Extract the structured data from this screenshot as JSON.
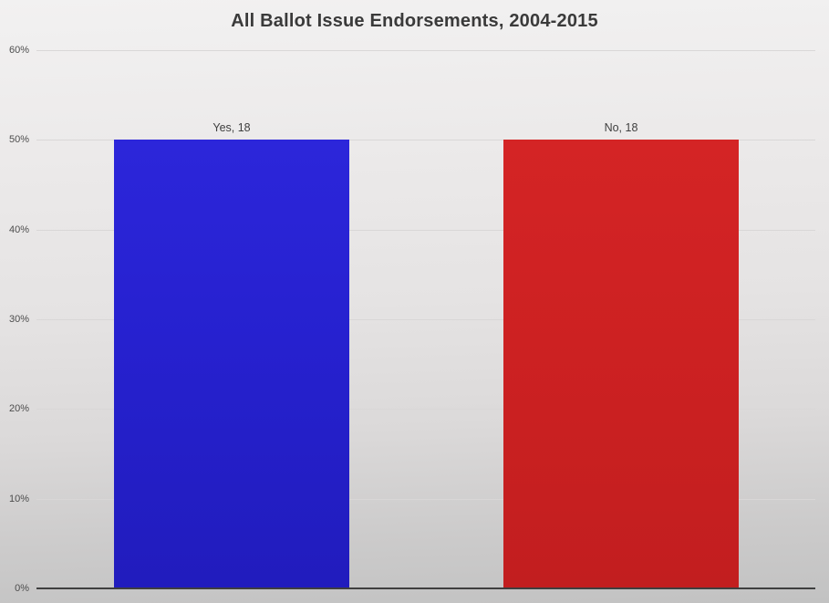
{
  "chart_data": {
    "type": "bar",
    "title": "All Ballot Issue Endorsements, 2004-2015",
    "categories": [
      "Yes",
      "No"
    ],
    "values": [
      50,
      50
    ],
    "counts": [
      18,
      18
    ],
    "data_labels": [
      "Yes, 18",
      "No, 18"
    ],
    "bar_colors": [
      "#2621cf",
      "#cd2122"
    ],
    "bar_gradient_tops": [
      "#2c26da",
      "#d42425"
    ],
    "bar_gradient_bottoms": [
      "#211cbd",
      "#c21e1f"
    ],
    "xlabel": "",
    "ylabel": "",
    "ylim": [
      0,
      60
    ],
    "ytick_step": 10,
    "ytick_labels": [
      "0%",
      "10%",
      "20%",
      "30%",
      "40%",
      "50%",
      "60%"
    ],
    "grid": true,
    "legend": false,
    "colors": {
      "title_text": "#3a3a3a",
      "tick_text": "#4d4d4d",
      "label_text": "#3f3f3f",
      "gridline": "#d9d7d7",
      "axis_line": "#3f3f3f",
      "background_top": "#f2f1f1",
      "background_bottom": "#c2c2c2"
    }
  }
}
